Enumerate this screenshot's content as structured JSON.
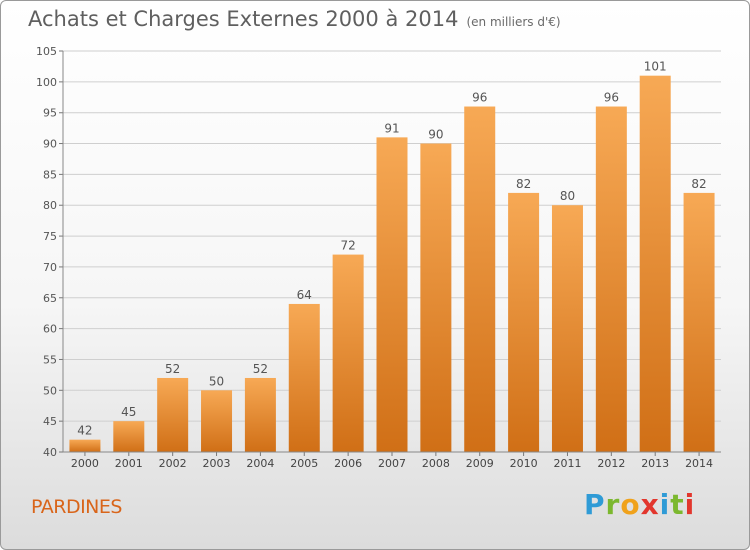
{
  "title": "Achats et Charges Externes 2000 à 2014",
  "subtitle": "(en milliers d'€)",
  "town": "PARDINES",
  "brand": {
    "letters": [
      "P",
      "r",
      "o",
      "x",
      "i",
      "t",
      "i"
    ],
    "colors": [
      "#2f9bd6",
      "#7cb82f",
      "#f0a21b",
      "#e2362d",
      "#2f9bd6",
      "#7cb82f",
      "#e2362d"
    ]
  },
  "colors": {
    "bar_top": "#f7a955",
    "bar_bottom": "#d06f16",
    "grid": "#cfcfcf",
    "text": "#555555",
    "town": "#d9651a"
  },
  "chart_data": {
    "type": "bar",
    "categories": [
      "2000",
      "2001",
      "2002",
      "2003",
      "2004",
      "2005",
      "2006",
      "2007",
      "2008",
      "2009",
      "2010",
      "2011",
      "2012",
      "2013",
      "2014"
    ],
    "values": [
      42,
      45,
      52,
      50,
      52,
      64,
      72,
      91,
      90,
      96,
      82,
      80,
      96,
      101,
      82
    ],
    "title": "Achats et Charges Externes 2000 à 2014",
    "xlabel": "",
    "ylabel": "",
    "ylim": [
      40,
      105
    ],
    "yticks": [
      40,
      45,
      50,
      55,
      60,
      65,
      70,
      75,
      80,
      85,
      90,
      95,
      100,
      105
    ],
    "grid": true
  }
}
